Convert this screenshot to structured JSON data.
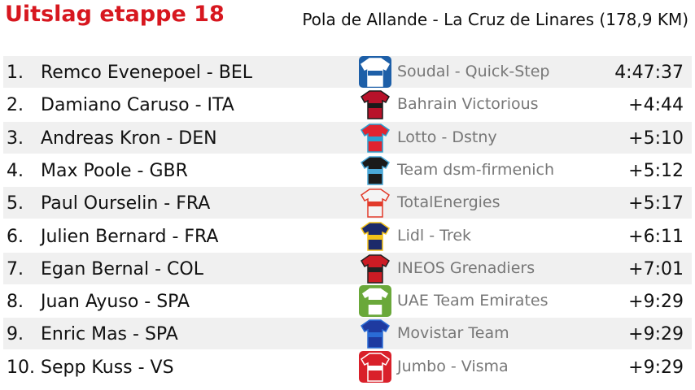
{
  "header": {
    "title": "Uitslag etappe 18",
    "subtitle": "Pola de Allande - La Cruz de Linares (178,9 KM)"
  },
  "table": {
    "rows": [
      [
        "1.",
        "Remco Evenepoel - BEL",
        "Soudal - Quick-Step",
        "4:47:37"
      ],
      [
        "2.",
        "Damiano Caruso - ITA",
        "Bahrain Victorious",
        "+4:44"
      ],
      [
        "3.",
        "Andreas Kron - DEN",
        "Lotto - Dstny",
        "+5:10"
      ],
      [
        "4.",
        "Max Poole - GBR",
        "Team dsm-firmenich",
        "+5:12"
      ],
      [
        "5.",
        "Paul Ourselin - FRA",
        "TotalEnergies",
        "+5:17"
      ],
      [
        "6.",
        "Julien Bernard - FRA",
        "Lidl - Trek",
        "+6:11"
      ],
      [
        "7.",
        "Egan Bernal - COL",
        "INEOS Grenadiers",
        "+7:01"
      ],
      [
        "8.",
        "Juan Ayuso - SPA",
        "UAE Team Emirates",
        "+9:29"
      ],
      [
        "9.",
        "Enric Mas - SPA",
        "Movistar Team",
        "+9:29"
      ],
      [
        "10.",
        "Sepp Kuss - VS",
        "Jumbo - Visma",
        "+9:29"
      ]
    ]
  }
}
